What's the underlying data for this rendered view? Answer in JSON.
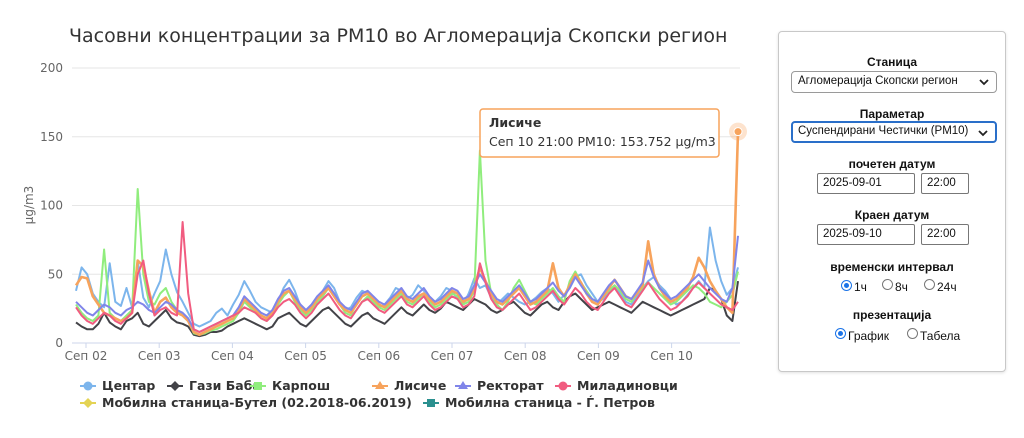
{
  "chart_data": {
    "type": "line",
    "title": "Часовни концентрации за PM10 во Агломерација Скопски регион",
    "ylabel": "µg/m3",
    "ylim": [
      0,
      200
    ],
    "yticks": [
      0,
      50,
      100,
      150,
      200
    ],
    "x_tick_labels": [
      "Сеп 02",
      "Сеп 03",
      "Сеп 04",
      "Сеп 05",
      "Сеп 06",
      "Сеп 07",
      "Сеп 08",
      "Сеп 09",
      "Сеп 10"
    ],
    "grid": true,
    "legend_position": "bottom",
    "tooltip": {
      "title": "Лисиче",
      "text": "Сеп 10 21:00 PM10: 153.752 µg/m3"
    },
    "series": [
      {
        "name": "Центар",
        "color": "#7cb5ec",
        "values": [
          38,
          55,
          50,
          36,
          30,
          26,
          58,
          30,
          27,
          40,
          26,
          60,
          33,
          26,
          36,
          45,
          68,
          50,
          37,
          30,
          22,
          14,
          12,
          14,
          16,
          22,
          25,
          20,
          28,
          35,
          45,
          38,
          30,
          26,
          24,
          22,
          30,
          40,
          46,
          38,
          27,
          22,
          25,
          32,
          38,
          45,
          40,
          30,
          24,
          26,
          33,
          38,
          36,
          30,
          26,
          28,
          33,
          40,
          38,
          32,
          35,
          42,
          38,
          33,
          30,
          34,
          40,
          38,
          32,
          28,
          36,
          47,
          40,
          42,
          33,
          28,
          32,
          36,
          33,
          30,
          28,
          30,
          33,
          37,
          40,
          36,
          30,
          35,
          40,
          48,
          50,
          42,
          36,
          30,
          32,
          38,
          42,
          36,
          30,
          28,
          34,
          40,
          45,
          48,
          42,
          38,
          32,
          28,
          30,
          35,
          40,
          45,
          40,
          84,
          60,
          45,
          35,
          40,
          55
        ]
      },
      {
        "name": "Гази Баба",
        "color": "#434348",
        "values": [
          15,
          12,
          10,
          10,
          14,
          22,
          15,
          12,
          10,
          16,
          18,
          22,
          14,
          12,
          16,
          20,
          24,
          18,
          15,
          14,
          12,
          6,
          5,
          6,
          8,
          8,
          9,
          12,
          14,
          16,
          18,
          16,
          14,
          12,
          10,
          12,
          18,
          20,
          22,
          18,
          14,
          12,
          16,
          20,
          24,
          26,
          22,
          18,
          14,
          12,
          16,
          20,
          22,
          18,
          16,
          14,
          18,
          22,
          26,
          22,
          20,
          24,
          28,
          24,
          22,
          25,
          30,
          28,
          26,
          24,
          28,
          32,
          30,
          28,
          24,
          22,
          24,
          28,
          30,
          26,
          22,
          20,
          24,
          28,
          30,
          26,
          24,
          30,
          34,
          36,
          32,
          28,
          24,
          26,
          28,
          30,
          28,
          26,
          24,
          22,
          26,
          30,
          28,
          26,
          24,
          22,
          20,
          22,
          24,
          26,
          28,
          30,
          32,
          40,
          38,
          32,
          20,
          16,
          45
        ]
      },
      {
        "name": "Карпош",
        "color": "#90ed7d",
        "values": [
          28,
          22,
          18,
          16,
          20,
          68,
          22,
          18,
          16,
          20,
          24,
          112,
          50,
          30,
          28,
          36,
          40,
          30,
          24,
          20,
          16,
          7,
          6,
          7,
          9,
          10,
          12,
          14,
          16,
          22,
          30,
          26,
          22,
          18,
          16,
          20,
          28,
          34,
          38,
          30,
          24,
          20,
          24,
          30,
          34,
          40,
          36,
          28,
          22,
          20,
          24,
          30,
          34,
          30,
          26,
          24,
          28,
          32,
          36,
          30,
          28,
          32,
          36,
          30,
          26,
          28,
          32,
          36,
          34,
          28,
          30,
          38,
          140,
          60,
          36,
          28,
          24,
          30,
          40,
          46,
          38,
          30,
          28,
          32,
          36,
          40,
          34,
          30,
          45,
          52,
          44,
          38,
          32,
          30,
          34,
          38,
          42,
          38,
          32,
          30,
          36,
          40,
          44,
          40,
          36,
          32,
          28,
          30,
          34,
          38,
          42,
          40,
          36,
          30,
          28,
          26,
          30,
          35,
          52
        ]
      },
      {
        "name": "Лисиче",
        "color": "#f7a35c",
        "values": [
          42,
          48,
          47,
          34,
          28,
          22,
          20,
          18,
          16,
          18,
          22,
          60,
          56,
          38,
          22,
          30,
          33,
          26,
          22,
          20,
          16,
          8,
          6,
          8,
          10,
          12,
          14,
          16,
          18,
          24,
          32,
          28,
          24,
          20,
          18,
          22,
          30,
          36,
          38,
          32,
          26,
          22,
          26,
          32,
          36,
          40,
          34,
          28,
          24,
          22,
          28,
          34,
          36,
          32,
          28,
          26,
          30,
          34,
          38,
          32,
          30,
          34,
          36,
          32,
          28,
          30,
          34,
          38,
          36,
          30,
          32,
          40,
          55,
          45,
          36,
          30,
          28,
          32,
          36,
          40,
          34,
          28,
          30,
          34,
          38,
          58,
          40,
          34,
          42,
          50,
          44,
          36,
          30,
          28,
          34,
          40,
          46,
          40,
          34,
          32,
          36,
          42,
          74,
          50,
          40,
          34,
          30,
          32,
          36,
          40,
          48,
          62,
          55,
          45,
          38,
          32,
          26,
          22,
          153.752
        ]
      },
      {
        "name": "Ректорат",
        "color": "#8085e9",
        "values": [
          30,
          26,
          22,
          20,
          24,
          28,
          26,
          22,
          20,
          24,
          26,
          30,
          28,
          24,
          22,
          26,
          30,
          28,
          24,
          22,
          18,
          10,
          8,
          10,
          12,
          14,
          16,
          18,
          20,
          26,
          34,
          30,
          26,
          22,
          20,
          24,
          32,
          38,
          40,
          34,
          28,
          24,
          28,
          34,
          38,
          42,
          36,
          30,
          26,
          24,
          30,
          36,
          38,
          34,
          30,
          28,
          32,
          36,
          40,
          34,
          32,
          36,
          40,
          34,
          30,
          32,
          36,
          40,
          38,
          32,
          34,
          42,
          50,
          44,
          38,
          32,
          30,
          34,
          38,
          42,
          36,
          30,
          32,
          36,
          40,
          44,
          38,
          34,
          40,
          48,
          42,
          36,
          32,
          30,
          36,
          42,
          46,
          40,
          34,
          32,
          38,
          44,
          60,
          48,
          40,
          36,
          32,
          34,
          38,
          42,
          46,
          50,
          45,
          40,
          36,
          32,
          30,
          40,
          78
        ]
      },
      {
        "name": "Миладиновци",
        "color": "#f15c80",
        "values": [
          26,
          20,
          16,
          14,
          18,
          22,
          20,
          16,
          14,
          18,
          22,
          50,
          60,
          36,
          20,
          24,
          26,
          22,
          20,
          88,
          36,
          10,
          8,
          10,
          12,
          14,
          16,
          18,
          20,
          22,
          26,
          24,
          22,
          18,
          16,
          20,
          26,
          30,
          32,
          28,
          22,
          18,
          22,
          28,
          32,
          36,
          30,
          24,
          20,
          18,
          24,
          30,
          32,
          28,
          24,
          22,
          26,
          30,
          34,
          28,
          26,
          30,
          34,
          28,
          24,
          26,
          30,
          34,
          32,
          26,
          28,
          34,
          58,
          44,
          32,
          26,
          24,
          28,
          32,
          36,
          30,
          24,
          26,
          30,
          34,
          38,
          32,
          28,
          34,
          40,
          36,
          30,
          26,
          24,
          30,
          36,
          40,
          34,
          28,
          26,
          32,
          38,
          44,
          38,
          32,
          28,
          24,
          26,
          30,
          34,
          40,
          44,
          40,
          36,
          32,
          28,
          26,
          24,
          30
        ]
      },
      {
        "name": "Мобилна станица-Бутел (02.2018-06.2019)",
        "color": "#e4d354",
        "values": []
      },
      {
        "name": "Мобилна станица - Ѓ. Петров",
        "color": "#2b908f",
        "values": []
      }
    ]
  },
  "panel": {
    "station_label": "Станица",
    "station_value": "Агломерација Скопски регион",
    "parameter_label": "Параметар",
    "parameter_value": "Суспендирани Честички (PM10)",
    "start_label": "почетен датум",
    "start_date": "2025-09-01",
    "start_time": "22:00",
    "end_label": "Краен датум",
    "end_date": "2025-09-10",
    "end_time": "22:00",
    "interval_label": "временски интервал",
    "interval_options": [
      "1ч",
      "8ч",
      "24ч"
    ],
    "interval_selected": 0,
    "presentation_label": "презентација",
    "presentation_options": [
      "График",
      "Табела"
    ],
    "presentation_selected": 0
  }
}
